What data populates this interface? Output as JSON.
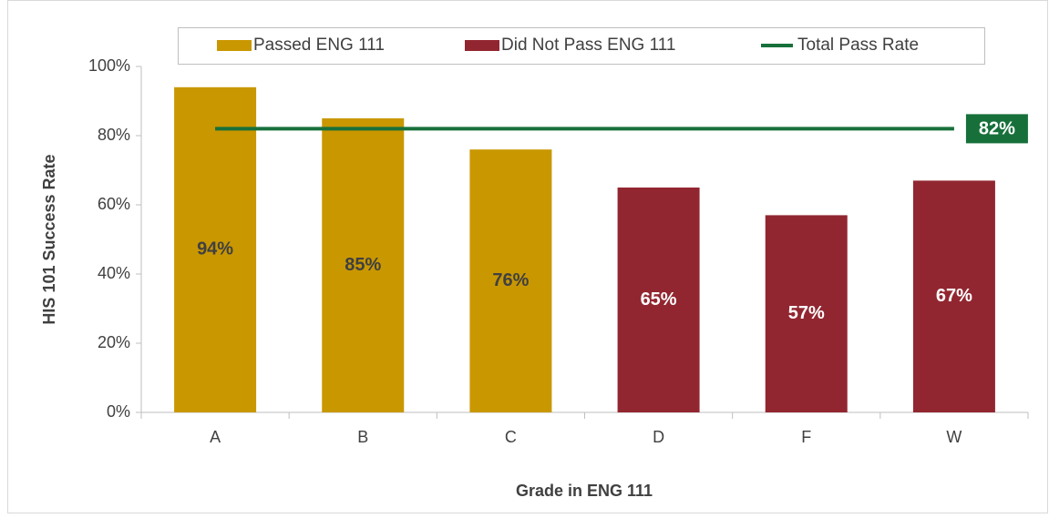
{
  "chart_data": {
    "type": "bar",
    "categories": [
      "A",
      "B",
      "C",
      "D",
      "F",
      "W"
    ],
    "series": [
      {
        "name": "Passed ENG 111",
        "color": "#c99700",
        "type": "bar",
        "label_color": "#404040",
        "values": [
          94,
          85,
          76,
          null,
          null,
          null
        ],
        "value_labels": [
          "94%",
          "85%",
          "76%",
          null,
          null,
          null
        ]
      },
      {
        "name": "Did Not Pass ENG 111",
        "color": "#922630",
        "type": "bar",
        "label_color": "#ffffff",
        "values": [
          null,
          null,
          null,
          65,
          57,
          67
        ],
        "value_labels": [
          null,
          null,
          null,
          "65%",
          "57%",
          "67%"
        ]
      },
      {
        "name": "Total Pass Rate",
        "color": "#17703a",
        "type": "line",
        "label_color": "#ffffff",
        "values": [
          82,
          82,
          82,
          82,
          82,
          82
        ],
        "value_labels": [
          null,
          null,
          null,
          null,
          null,
          "82%"
        ]
      }
    ],
    "xlabel": "Grade in ENG 111",
    "ylabel": "HIS 101 Success Rate",
    "ylim": [
      0,
      100
    ],
    "yticks": [
      {
        "value": 0,
        "label": "0%"
      },
      {
        "value": 20,
        "label": "20%"
      },
      {
        "value": 40,
        "label": "40%"
      },
      {
        "value": 60,
        "label": "60%"
      },
      {
        "value": 80,
        "label": "80%"
      },
      {
        "value": 100,
        "label": "100%"
      }
    ],
    "legend": "top",
    "grid": false
  }
}
